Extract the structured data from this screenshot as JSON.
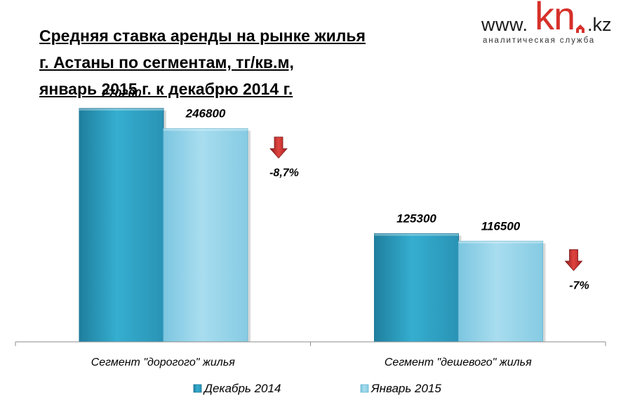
{
  "title_lines": [
    "Средняя ставка аренды на рынке жилья",
    "г. Астаны по сегментам, тг/кв.м,",
    "январь 2015 г. к декабрю  2014 г."
  ],
  "logo": {
    "www": "www.",
    "kn": "kn",
    "kz": ".kz",
    "tagline": "аналитическая служба"
  },
  "colors": {
    "series_dec": "#2ea3c4",
    "series_jan": "#93d3ea",
    "arrow": "#c0282a"
  },
  "chart_data": {
    "type": "bar",
    "categories": [
      "Сегмент \"дорогого\" жилья",
      "Сегмент \"дешевого\" жилья"
    ],
    "series": [
      {
        "name": "Декабрь 2014",
        "values": [
          270200,
          125300
        ]
      },
      {
        "name": "Январь 2015",
        "values": [
          246800,
          116500
        ]
      }
    ],
    "value_labels": [
      [
        "270200",
        "125300"
      ],
      [
        "246800",
        "116500"
      ]
    ],
    "change_labels": [
      "-8,7%",
      "-7%"
    ],
    "ylim": [
      0,
      300000
    ],
    "grid": false,
    "legend_position": "bottom"
  }
}
